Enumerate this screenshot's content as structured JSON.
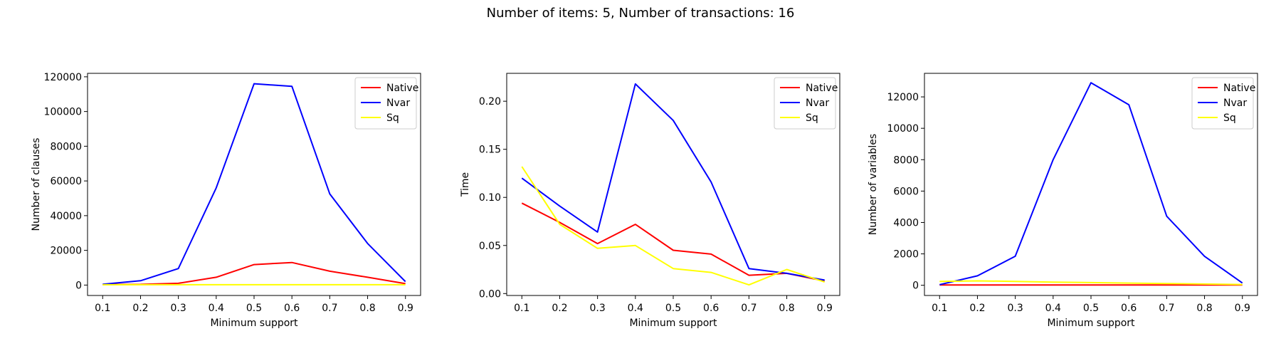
{
  "suptitle": "Number of items: 5, Number of transactions: 16",
  "colors": {
    "Native": "#ff0000",
    "Nvar": "#0000ff",
    "Sq": "#ffff00"
  },
  "chart_data": [
    {
      "type": "line",
      "xlabel": "Minimum support",
      "ylabel": "Number of clauses",
      "x": [
        0.1,
        0.2,
        0.3,
        0.4,
        0.5,
        0.6,
        0.7,
        0.8,
        0.9
      ],
      "xticks": [
        "0.1",
        "0.2",
        "0.3",
        "0.4",
        "0.5",
        "0.6",
        "0.7",
        "0.8",
        "0.9"
      ],
      "ylim": [
        -6000,
        122000
      ],
      "yticks": [
        0,
        20000,
        40000,
        60000,
        80000,
        100000,
        120000
      ],
      "ytick_labels": [
        "0",
        "20000",
        "40000",
        "60000",
        "80000",
        "100000",
        "120000"
      ],
      "legend": "top-right",
      "series": [
        {
          "name": "Native",
          "color": "#ff0000",
          "values": [
            300,
            400,
            1000,
            4500,
            11800,
            13000,
            8000,
            4500,
            800
          ]
        },
        {
          "name": "Nvar",
          "color": "#0000ff",
          "values": [
            500,
            2500,
            9500,
            56000,
            116000,
            114500,
            52500,
            24000,
            2000
          ]
        },
        {
          "name": "Sq",
          "color": "#ffff00",
          "values": [
            200,
            200,
            200,
            200,
            200,
            200,
            200,
            200,
            200
          ]
        }
      ]
    },
    {
      "type": "line",
      "xlabel": "Minimum support",
      "ylabel": "Time",
      "x": [
        0.1,
        0.2,
        0.3,
        0.4,
        0.5,
        0.6,
        0.7,
        0.8,
        0.9
      ],
      "xticks": [
        "0.1",
        "0.2",
        "0.3",
        "0.4",
        "0.5",
        "0.6",
        "0.7",
        "0.8",
        "0.9"
      ],
      "ylim": [
        -0.002,
        0.229
      ],
      "yticks": [
        0.0,
        0.05,
        0.1,
        0.15,
        0.2
      ],
      "ytick_labels": [
        "0.00",
        "0.05",
        "0.10",
        "0.15",
        "0.20"
      ],
      "legend": "top-right",
      "series": [
        {
          "name": "Native",
          "color": "#ff0000",
          "values": [
            0.094,
            0.074,
            0.052,
            0.072,
            0.045,
            0.041,
            0.019,
            0.021,
            0.013
          ]
        },
        {
          "name": "Nvar",
          "color": "#0000ff",
          "values": [
            0.12,
            0.091,
            0.064,
            0.218,
            0.18,
            0.116,
            0.026,
            0.021,
            0.014
          ]
        },
        {
          "name": "Sq",
          "color": "#ffff00",
          "values": [
            0.132,
            0.072,
            0.047,
            0.05,
            0.026,
            0.022,
            0.009,
            0.025,
            0.012
          ]
        }
      ]
    },
    {
      "type": "line",
      "xlabel": "Minimum support",
      "ylabel": "Number of variables",
      "x": [
        0.1,
        0.2,
        0.3,
        0.4,
        0.5,
        0.6,
        0.7,
        0.8,
        0.9
      ],
      "xticks": [
        "0.1",
        "0.2",
        "0.3",
        "0.4",
        "0.5",
        "0.6",
        "0.7",
        "0.8",
        "0.9"
      ],
      "ylim": [
        -650,
        13500
      ],
      "yticks": [
        0,
        2000,
        4000,
        6000,
        8000,
        10000,
        12000
      ],
      "ytick_labels": [
        "0",
        "2000",
        "4000",
        "6000",
        "8000",
        "10000",
        "12000"
      ],
      "legend": "top-right",
      "series": [
        {
          "name": "Native",
          "color": "#ff0000",
          "values": [
            20,
            20,
            20,
            20,
            20,
            20,
            20,
            20,
            20
          ]
        },
        {
          "name": "Nvar",
          "color": "#0000ff",
          "values": [
            40,
            600,
            1850,
            8000,
            12900,
            11500,
            4400,
            1850,
            150
          ]
        },
        {
          "name": "Sq",
          "color": "#ffff00",
          "values": [
            250,
            280,
            250,
            200,
            170,
            140,
            110,
            80,
            50
          ]
        }
      ]
    }
  ]
}
